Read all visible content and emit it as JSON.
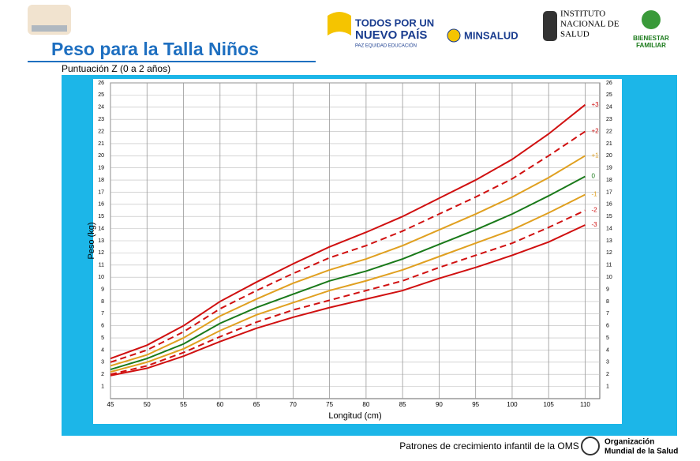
{
  "header": {
    "title": "Peso para la Talla Niños",
    "subtitle": "Puntuación Z (0 a 2 años)",
    "logo1": [
      "TODOS POR UN",
      "NUEVO PAÍS",
      "PAZ  EQUIDAD  EDUCACIÓN"
    ],
    "logo2": "MINSALUD",
    "logo3": [
      "INSTITUTO",
      "NACIONAL DE",
      "SALUD"
    ],
    "logo4": [
      "BIENESTAR",
      "FAMILIAR"
    ]
  },
  "footer": {
    "text": "Patrones de crecimiento infantil de la OMS",
    "org": [
      "Organización",
      "Mundial de la Salud"
    ]
  },
  "chart_data": {
    "type": "line",
    "x_label": "Longitud (cm)",
    "y_label": "Peso (kg)",
    "x": [
      45,
      50,
      55,
      60,
      65,
      70,
      75,
      80,
      85,
      90,
      95,
      100,
      105,
      110
    ],
    "xlim": [
      45,
      112
    ],
    "xticks": [
      45,
      50,
      55,
      60,
      65,
      70,
      75,
      80,
      85,
      90,
      95,
      100,
      105,
      110
    ],
    "ylim": [
      0,
      26
    ],
    "yticks": [
      1,
      2,
      3,
      4,
      5,
      6,
      7,
      8,
      9,
      10,
      11,
      12,
      13,
      14,
      15,
      16,
      17,
      18,
      19,
      20,
      21,
      22,
      23,
      24,
      25,
      26
    ],
    "grid": true,
    "series": [
      {
        "name": "+3",
        "color": "#d01010",
        "dashed": false,
        "values": [
          3.3,
          4.4,
          6.0,
          8.0,
          9.6,
          11.1,
          12.5,
          13.7,
          15.0,
          16.5,
          18.0,
          19.7,
          21.8,
          24.2
        ]
      },
      {
        "name": "+2",
        "color": "#d01010",
        "dashed": true,
        "values": [
          3.0,
          4.0,
          5.5,
          7.4,
          8.9,
          10.3,
          11.6,
          12.6,
          13.8,
          15.2,
          16.6,
          18.1,
          20.0,
          22.0
        ]
      },
      {
        "name": "+1",
        "color": "#e0a020",
        "dashed": false,
        "values": [
          2.7,
          3.6,
          5.0,
          6.8,
          8.2,
          9.5,
          10.6,
          11.5,
          12.6,
          13.9,
          15.2,
          16.6,
          18.2,
          20.0
        ]
      },
      {
        "name": "0",
        "color": "#1a7a1a",
        "dashed": false,
        "values": [
          2.4,
          3.3,
          4.5,
          6.2,
          7.5,
          8.6,
          9.7,
          10.5,
          11.5,
          12.7,
          13.9,
          15.2,
          16.7,
          18.3
        ]
      },
      {
        "name": "-1",
        "color": "#e0a020",
        "dashed": false,
        "values": [
          2.2,
          3.0,
          4.1,
          5.6,
          6.9,
          7.9,
          8.9,
          9.7,
          10.6,
          11.7,
          12.8,
          13.9,
          15.3,
          16.8
        ]
      },
      {
        "name": "-2",
        "color": "#d01010",
        "dashed": true,
        "values": [
          2.0,
          2.7,
          3.8,
          5.1,
          6.3,
          7.3,
          8.1,
          8.9,
          9.7,
          10.8,
          11.8,
          12.8,
          14.1,
          15.5
        ]
      },
      {
        "name": "-3",
        "color": "#d01010",
        "dashed": false,
        "values": [
          1.9,
          2.5,
          3.5,
          4.7,
          5.8,
          6.7,
          7.5,
          8.2,
          8.9,
          9.9,
          10.8,
          11.8,
          12.9,
          14.3
        ]
      }
    ]
  }
}
